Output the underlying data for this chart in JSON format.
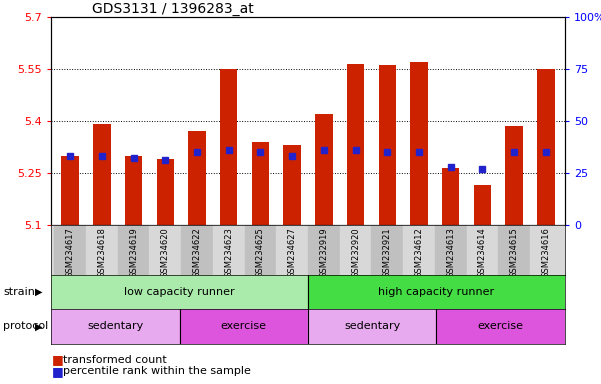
{
  "title": "GDS3131 / 1396283_at",
  "samples": [
    "GSM234617",
    "GSM234618",
    "GSM234619",
    "GSM234620",
    "GSM234622",
    "GSM234623",
    "GSM234625",
    "GSM234627",
    "GSM232919",
    "GSM232920",
    "GSM232921",
    "GSM234612",
    "GSM234613",
    "GSM234614",
    "GSM234615",
    "GSM234616"
  ],
  "transformed_count": [
    5.3,
    5.39,
    5.3,
    5.29,
    5.37,
    5.55,
    5.34,
    5.33,
    5.42,
    5.565,
    5.562,
    5.572,
    5.265,
    5.215,
    5.385,
    5.55
  ],
  "percentile_rank": [
    33,
    33,
    32,
    31,
    35,
    36,
    35,
    33,
    36,
    36,
    35,
    35,
    28,
    27,
    35,
    35
  ],
  "ylim_left": [
    5.1,
    5.7
  ],
  "ylim_right": [
    0,
    100
  ],
  "yticks_left": [
    5.1,
    5.25,
    5.4,
    5.55,
    5.7
  ],
  "yticks_right": [
    0,
    25,
    50,
    75,
    100
  ],
  "ytick_labels_left": [
    "5.1",
    "5.25",
    "5.4",
    "5.55",
    "5.7"
  ],
  "ytick_labels_right": [
    "0",
    "25",
    "50",
    "75",
    "100%"
  ],
  "bar_color": "#cc2200",
  "marker_color": "#2222cc",
  "bg_color": "#ffffff",
  "plot_bg": "#ffffff",
  "strain_labels": [
    "low capacity runner",
    "high capacity runner"
  ],
  "protocol_labels": [
    "sedentary",
    "exercise",
    "sedentary",
    "exercise"
  ],
  "strain_color_left": "#aaeaaa",
  "strain_color_right": "#44dd44",
  "protocol_color_light": "#e8aaee",
  "protocol_color_dark": "#dd55dd",
  "bar_bottom": 5.1,
  "grid_yticks": [
    5.25,
    5.4,
    5.55
  ]
}
